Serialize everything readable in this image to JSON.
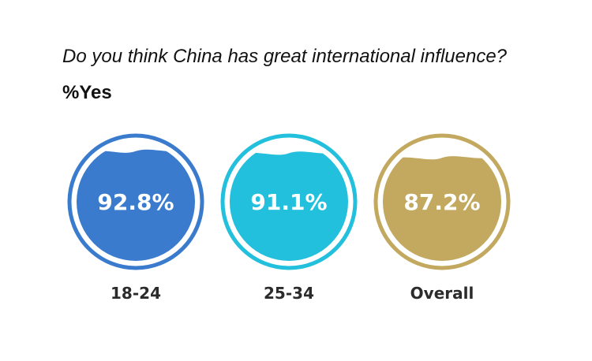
{
  "title": "Do you think China has great international influence?",
  "subtitle": "%Yes",
  "chart_data": {
    "type": "gauge",
    "title": "Do you think China has great international influence?",
    "subtitle": "%Yes",
    "unit": "%",
    "categories": [
      "18-24",
      "25-34",
      "Overall"
    ],
    "values": [
      92.8,
      91.1,
      87.2
    ],
    "value_labels": [
      "92.8%",
      "91.1%",
      "87.2%"
    ],
    "colors": [
      "#3a7bce",
      "#22c0dc",
      "#c2a95f"
    ]
  }
}
